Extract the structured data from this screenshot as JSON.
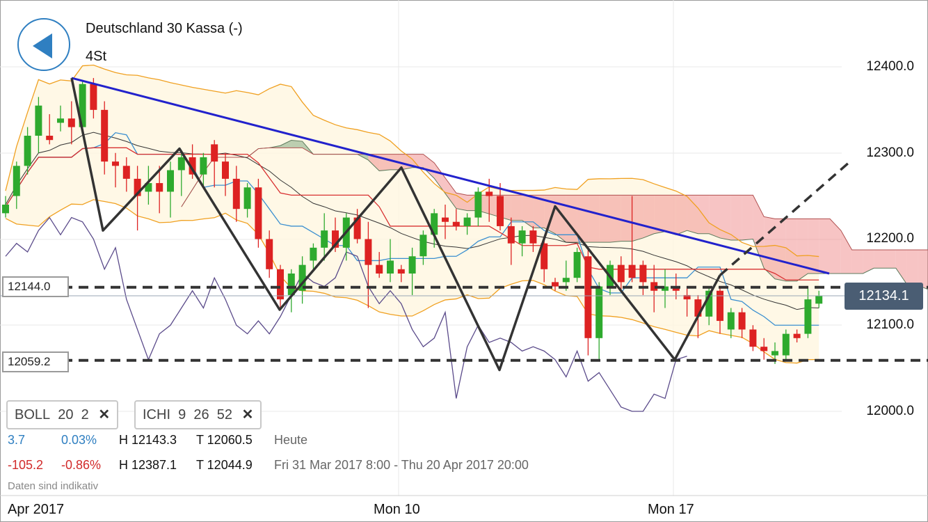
{
  "header": {
    "title": "Deutschland 30 Kassa (-)",
    "interval": "4St"
  },
  "colors": {
    "bull": "#2eaa2e",
    "bear": "#dd2222",
    "trendline": "#2222cc",
    "zigzag": "#333333",
    "cloud_green": "#7aa37a",
    "cloud_red": "#f08a8a",
    "boll": "#f0a020",
    "tenkan": "#3a8fd0",
    "kijun": "#d83030",
    "chikou": "#5a4a8a",
    "price_box": "#4a5d73"
  },
  "levels": {
    "upper_label": "12144.0",
    "lower_label": "12059.2"
  },
  "current_price": "12134.1",
  "indicators": [
    {
      "name": "BOLL",
      "p1": "20",
      "p2": "2"
    },
    {
      "name": "ICHI",
      "p1": "9",
      "p2": "26",
      "p3": "52"
    }
  ],
  "stats": {
    "today": {
      "change": "3.7",
      "pct": "0.03%",
      "high": "H 12143.3",
      "low": "T 12060.5",
      "label": "Heute"
    },
    "period": {
      "change": "-105.2",
      "pct": "-0.86%",
      "high": "H 12387.1",
      "low": "T 12044.9",
      "label": "Fri 31 Mar 2017 8:00 - Thu 20 Apr 2017 20:00"
    }
  },
  "disclaimer": "Daten sind indikativ",
  "x_axis": {
    "labels": [
      "Apr 2017",
      "Mon 10",
      "Mon 17"
    ]
  },
  "chart_data": {
    "type": "candlestick",
    "y_ticks": [
      "12400.0",
      "12300.0",
      "12200.0",
      "12100.0",
      "12000.0"
    ],
    "ylim": [
      11925,
      12435
    ],
    "candles": [
      [
        12230,
        12250,
        12225,
        12240
      ],
      [
        12250,
        12290,
        12235,
        12285
      ],
      [
        12285,
        12330,
        12275,
        12320
      ],
      [
        12320,
        12365,
        12300,
        12355
      ],
      [
        12320,
        12345,
        12310,
        12315
      ],
      [
        12335,
        12355,
        12325,
        12340
      ],
      [
        12340,
        12360,
        12310,
        12330
      ],
      [
        12330,
        12385,
        12325,
        12380
      ],
      [
        12380,
        12387,
        12340,
        12350
      ],
      [
        12350,
        12360,
        12275,
        12290
      ],
      [
        12290,
        12300,
        12260,
        12285
      ],
      [
        12285,
        12295,
        12255,
        12270
      ],
      [
        12270,
        12285,
        12210,
        12250
      ],
      [
        12255,
        12285,
        12240,
        12265
      ],
      [
        12265,
        12285,
        12230,
        12255
      ],
      [
        12255,
        12290,
        12225,
        12280
      ],
      [
        12280,
        12300,
        12250,
        12295
      ],
      [
        12295,
        12310,
        12270,
        12275
      ],
      [
        12275,
        12300,
        12260,
        12295
      ],
      [
        12310,
        12315,
        12260,
        12290
      ],
      [
        12290,
        12300,
        12250,
        12270
      ],
      [
        12270,
        12285,
        12220,
        12235
      ],
      [
        12235,
        12265,
        12225,
        12260
      ],
      [
        12260,
        12270,
        12190,
        12200
      ],
      [
        12200,
        12210,
        12155,
        12165
      ],
      [
        12165,
        12170,
        12120,
        12130
      ],
      [
        12135,
        12165,
        12115,
        12160
      ],
      [
        12140,
        12180,
        12125,
        12170
      ],
      [
        12175,
        12195,
        12165,
        12190
      ],
      [
        12190,
        12230,
        12175,
        12210
      ],
      [
        12210,
        12225,
        12185,
        12190
      ],
      [
        12190,
        12230,
        12175,
        12225
      ],
      [
        12225,
        12235,
        12195,
        12200
      ],
      [
        12200,
        12220,
        12120,
        12170
      ],
      [
        12170,
        12185,
        12155,
        12160
      ],
      [
        12160,
        12200,
        12150,
        12175
      ],
      [
        12165,
        12170,
        12150,
        12160
      ],
      [
        12160,
        12190,
        12135,
        12180
      ],
      [
        12180,
        12210,
        12170,
        12205
      ],
      [
        12205,
        12235,
        12190,
        12230
      ],
      [
        12225,
        12240,
        12200,
        12220
      ],
      [
        12220,
        12235,
        12210,
        12215
      ],
      [
        12215,
        12230,
        12205,
        12225
      ],
      [
        12225,
        12260,
        12215,
        12255
      ],
      [
        12255,
        12270,
        12220,
        12250
      ],
      [
        12250,
        12265,
        12210,
        12215
      ],
      [
        12215,
        12225,
        12170,
        12195
      ],
      [
        12195,
        12215,
        12180,
        12210
      ],
      [
        12210,
        12215,
        12185,
        12195
      ],
      [
        12195,
        12200,
        12150,
        12165
      ],
      [
        12150,
        12155,
        12140,
        12145
      ],
      [
        12150,
        12175,
        12140,
        12155
      ],
      [
        12155,
        12190,
        12150,
        12185
      ],
      [
        12180,
        12190,
        12065,
        12085
      ],
      [
        12085,
        12150,
        12060,
        12145
      ],
      [
        12145,
        12175,
        12135,
        12170
      ],
      [
        12170,
        12180,
        12140,
        12150
      ],
      [
        12170,
        12250,
        12150,
        12155
      ],
      [
        12170,
        12175,
        12135,
        12150
      ],
      [
        12150,
        12170,
        12115,
        12140
      ],
      [
        12140,
        12165,
        12120,
        12145
      ],
      [
        12145,
        12160,
        12130,
        12140
      ],
      [
        12135,
        12145,
        12110,
        12130
      ],
      [
        12130,
        12135,
        12085,
        12110
      ],
      [
        12110,
        12145,
        12100,
        12140
      ],
      [
        12140,
        12145,
        12090,
        12105
      ],
      [
        12095,
        12120,
        12085,
        12115
      ],
      [
        12115,
        12120,
        12085,
        12095
      ],
      [
        12095,
        12100,
        12070,
        12075
      ],
      [
        12075,
        12085,
        12060,
        12070
      ],
      [
        12065,
        12080,
        12055,
        12070
      ],
      [
        12065,
        12095,
        12060,
        12090
      ],
      [
        12090,
        12095,
        12080,
        12085
      ],
      [
        12090,
        12145,
        12085,
        12130
      ],
      [
        12125,
        12140,
        12120,
        12134
      ]
    ],
    "blue_trendline": {
      "from": [
        12387,
        "Mar 31"
      ],
      "to": [
        12160,
        "Apr 21"
      ]
    },
    "zigzag": [
      12387,
      12210,
      12305,
      12118,
      12283,
      12048,
      12238,
      12060,
      12158
    ],
    "zigzag_projection": [
      12158,
      12290
    ],
    "horizontal_levels": [
      12144.0,
      12059.2
    ]
  }
}
